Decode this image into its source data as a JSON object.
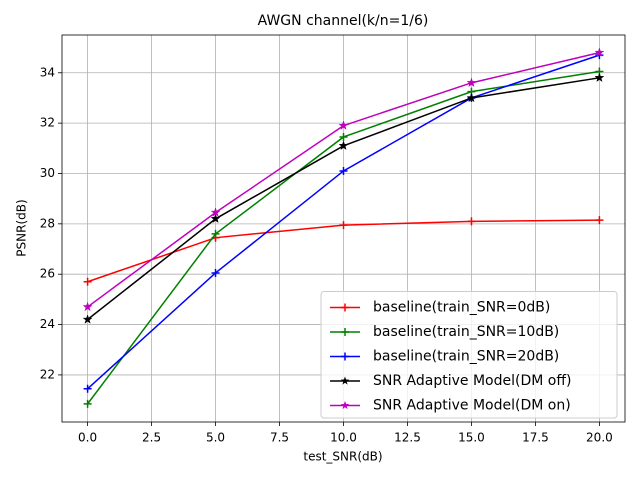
{
  "chart_data": {
    "type": "line",
    "title": "AWGN channel(k/n=1/6)",
    "x_label": "test_SNR(dB)",
    "y_label": "PSNR(dB)",
    "x": [
      0,
      5,
      10,
      15,
      20
    ],
    "series": [
      {
        "name": "baseline(train_SNR=0dB)",
        "color": "#ff0000",
        "marker": "plus",
        "values": [
          25.7,
          27.45,
          27.95,
          28.1,
          28.15
        ]
      },
      {
        "name": "baseline(train_SNR=10dB)",
        "color": "#008000",
        "marker": "plus",
        "values": [
          20.85,
          27.6,
          31.45,
          33.25,
          34.05
        ]
      },
      {
        "name": "baseline(train_SNR=20dB)",
        "color": "#0000ff",
        "marker": "plus",
        "values": [
          21.45,
          26.05,
          30.1,
          33.0,
          34.7
        ]
      },
      {
        "name": "SNR Adaptive Model(DM off)",
        "color": "#000000",
        "marker": "star",
        "values": [
          24.2,
          28.2,
          31.1,
          33.0,
          33.8
        ]
      },
      {
        "name": "SNR Adaptive Model(DM on)",
        "color": "#bf00bf",
        "marker": "star",
        "values": [
          24.7,
          28.45,
          31.9,
          33.6,
          34.8
        ]
      }
    ],
    "xlim": [
      -1,
      21
    ],
    "ylim": [
      20.13,
      35.5
    ],
    "xticks": [
      {
        "value": 0,
        "label": "0.0"
      },
      2.5,
      {
        "value": 5,
        "label": "5.0"
      },
      7.5,
      {
        "value": 10,
        "label": "10.0"
      },
      12.5,
      {
        "value": 15,
        "label": "15.0"
      },
      17.5,
      {
        "value": 20,
        "label": "20.0"
      }
    ],
    "yticks": [
      22,
      24,
      26,
      28,
      30,
      32,
      34
    ],
    "grid": true,
    "legend": "lower right"
  }
}
